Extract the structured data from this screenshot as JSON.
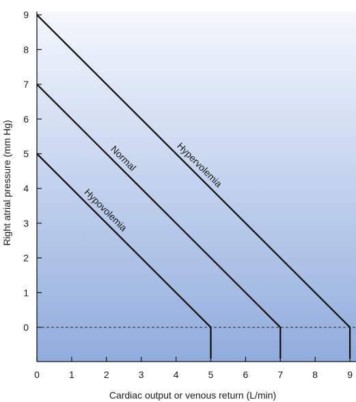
{
  "chart_data": {
    "type": "line",
    "xlabel": "Cardiac output or venous return (L/min)",
    "ylabel": "Right atrial pressure (mm Hg)",
    "xlim": [
      0,
      9.2
    ],
    "ylim": [
      -0.9,
      9.1
    ],
    "xticks": [
      0,
      1,
      2,
      3,
      4,
      5,
      6,
      7,
      8,
      9
    ],
    "yticks": [
      0,
      1,
      2,
      3,
      4,
      5,
      6,
      7,
      8,
      9
    ],
    "grid": false,
    "reference_line": {
      "y": 0,
      "style": "dashed"
    },
    "series": [
      {
        "name": "Hypovolemia",
        "points": [
          [
            0,
            5
          ],
          [
            5,
            0
          ],
          [
            5,
            -0.9
          ]
        ]
      },
      {
        "name": "Normal",
        "points": [
          [
            0,
            7
          ],
          [
            7,
            0
          ],
          [
            7,
            -0.9
          ]
        ]
      },
      {
        "name": "Hypervolemia",
        "points": [
          [
            0,
            9
          ],
          [
            9,
            0
          ],
          [
            9,
            -0.9
          ]
        ]
      }
    ],
    "colors": {
      "background_top": "#f4f7fd",
      "background_bottom": "#90acdc",
      "line": "#111111"
    }
  }
}
